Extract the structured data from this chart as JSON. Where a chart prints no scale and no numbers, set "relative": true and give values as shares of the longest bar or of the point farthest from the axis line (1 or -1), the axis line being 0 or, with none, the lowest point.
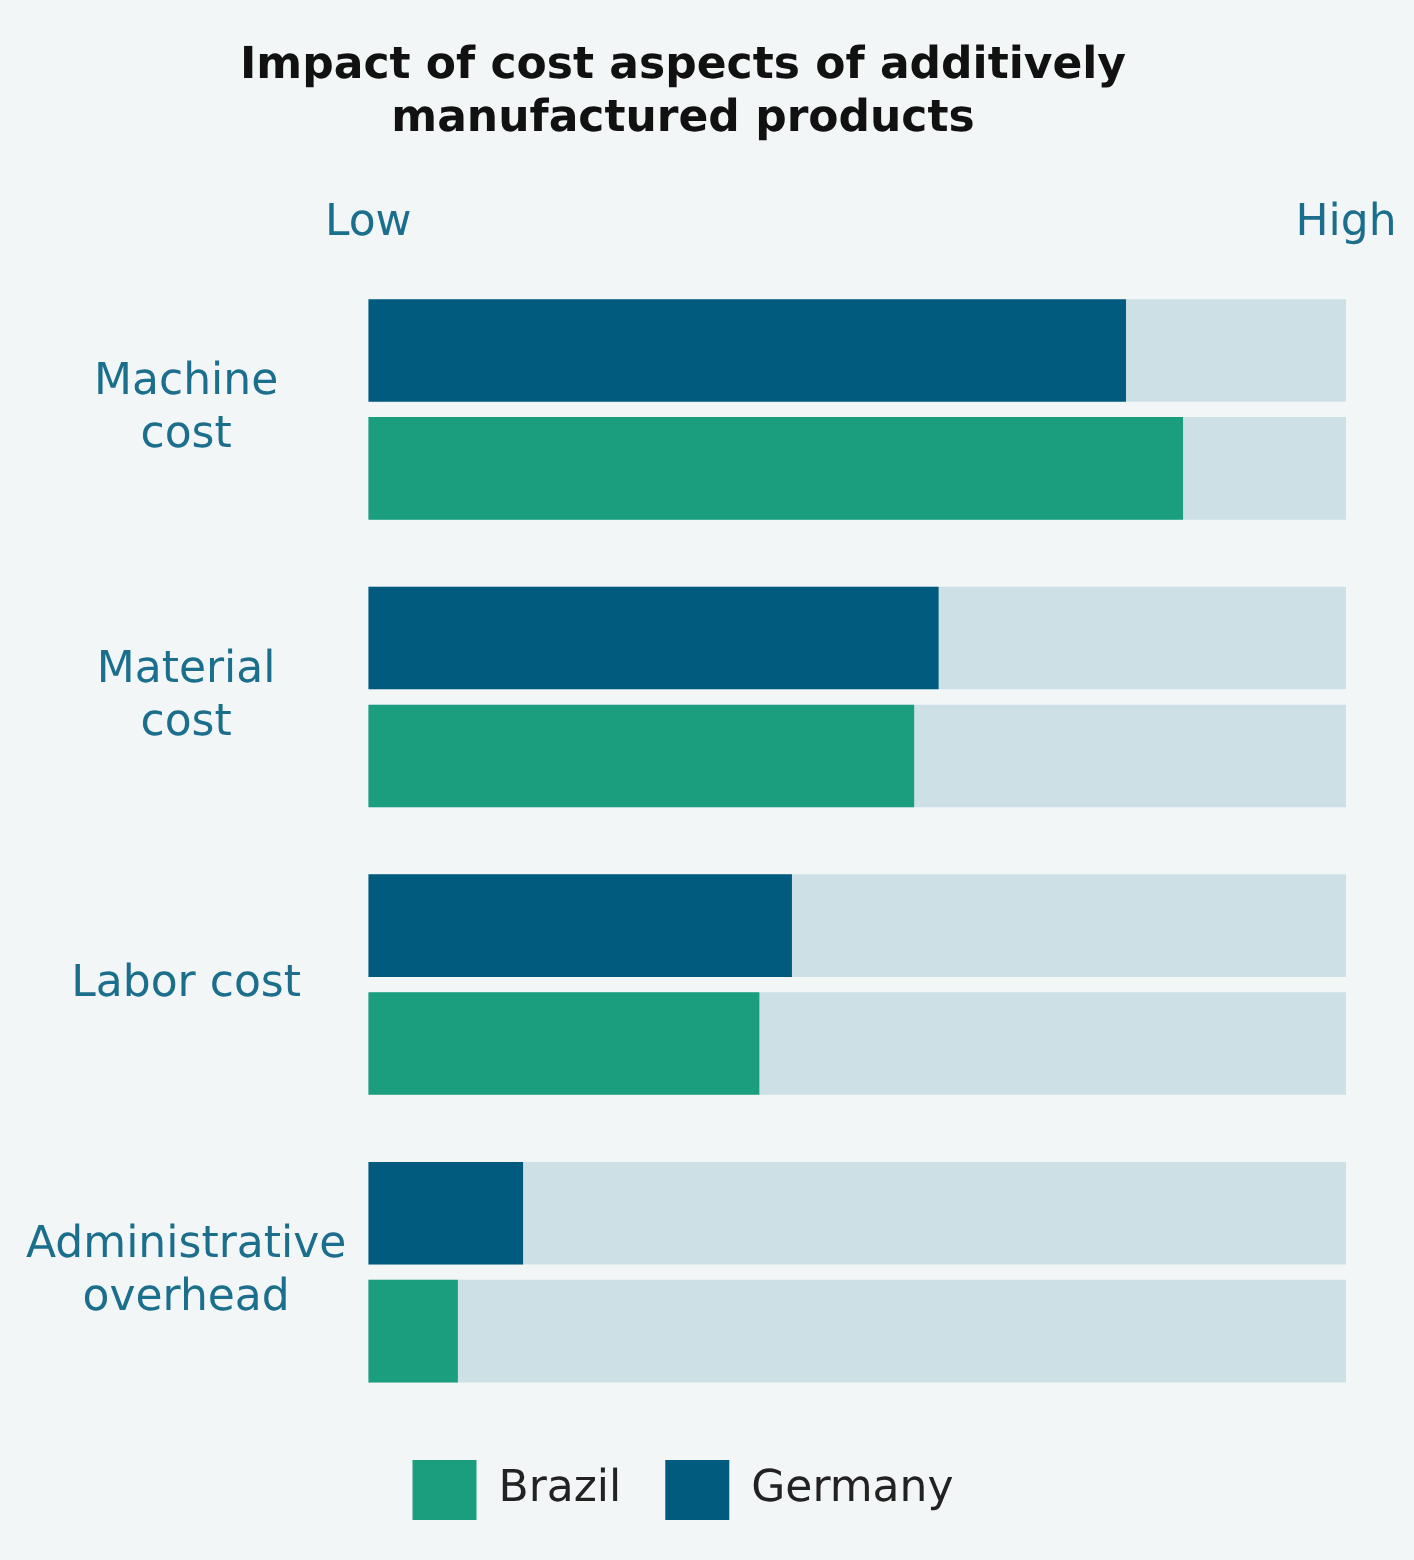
{
  "chart_data": {
    "type": "bar",
    "orientation": "horizontal",
    "relative": true,
    "title": "Impact of cost aspects of additively manufactured products",
    "categories": [
      "Machine cost",
      "Material cost",
      "Labor cost",
      "Administrative overhead"
    ],
    "series": [
      {
        "name": "Germany",
        "color": "#005b7f",
        "values": [
          0.93,
          0.7,
          0.52,
          0.19
        ]
      },
      {
        "name": "Brazil",
        "color": "#1a9e7e",
        "values": [
          1,
          0.67,
          0.48,
          0.11
        ]
      }
    ],
    "annotations": [
      "Low",
      "High"
    ],
    "grid": false,
    "legend": "bottom"
  }
}
